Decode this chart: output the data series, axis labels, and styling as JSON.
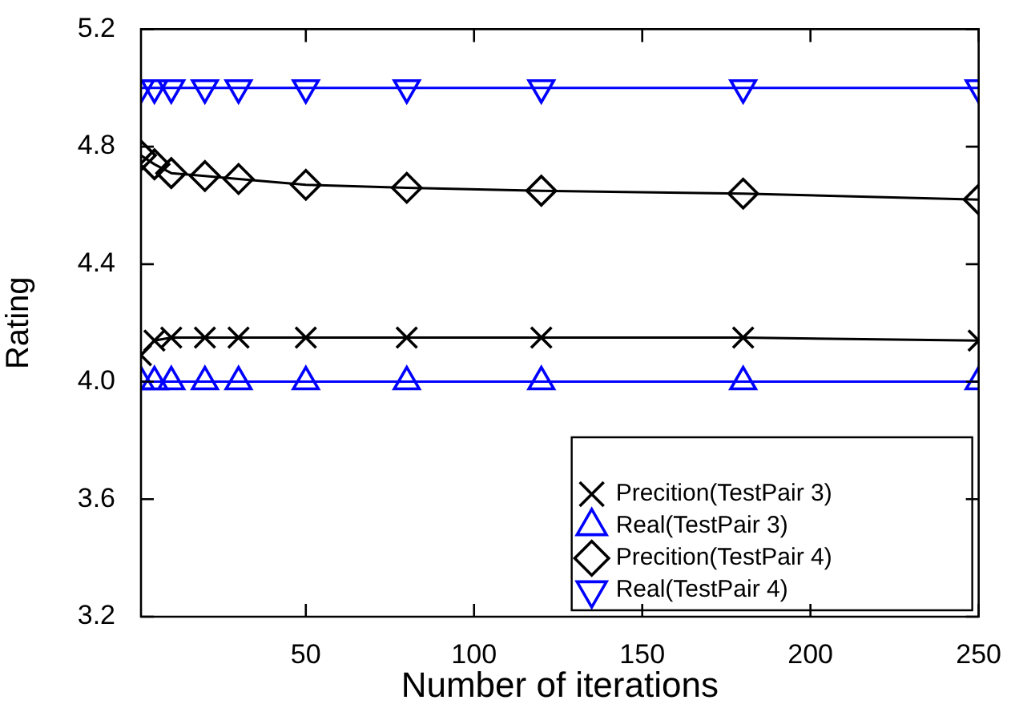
{
  "chart_data": {
    "type": "line",
    "xlabel": "Number of iterations",
    "ylabel": "Rating",
    "xlim": [
      1,
      250
    ],
    "xticks": [
      50,
      100,
      150,
      200,
      250
    ],
    "ylim": [
      3.2,
      5.2
    ],
    "yticks": [
      3.2,
      3.6,
      {
        "value": 4,
        "label": "4.0"
      },
      4.4,
      4.8,
      5.2
    ],
    "grid": false,
    "legend": "bottom right",
    "line_style": "solid",
    "series": [
      {
        "name": "Precition(TestPair 3)",
        "color": "#000000",
        "marker": "cross",
        "x": [
          1,
          5,
          10,
          20,
          30,
          50,
          80,
          120,
          180,
          250
        ],
        "values": [
          4.09,
          4.14,
          4.15,
          4.15,
          4.15,
          4.15,
          4.15,
          4.15,
          4.15,
          4.14
        ]
      },
      {
        "name": "Real(TestPair 3)",
        "color": "#0000ff",
        "marker": "triangle",
        "x": [
          1,
          5,
          10,
          20,
          30,
          50,
          80,
          120,
          180,
          250
        ],
        "values": [
          4.0,
          4.0,
          4.0,
          4.0,
          4.0,
          4.0,
          4.0,
          4.0,
          4.0,
          4.0
        ]
      },
      {
        "name": "Precition(TestPair 4)",
        "color": "#000000",
        "marker": "diamond",
        "x": [
          1,
          5,
          10,
          20,
          30,
          50,
          80,
          120,
          180,
          250
        ],
        "values": [
          4.77,
          4.74,
          4.71,
          4.7,
          4.69,
          4.67,
          4.66,
          4.65,
          4.64,
          4.62
        ]
      },
      {
        "name": "Real(TestPair 4)",
        "color": "#0000ff",
        "marker": "triangle_down",
        "x": [
          1,
          5,
          10,
          20,
          30,
          50,
          80,
          120,
          180,
          250
        ],
        "values": [
          5.0,
          5.0,
          5.0,
          5.0,
          5.0,
          5.0,
          5.0,
          5.0,
          5.0,
          5.0
        ]
      }
    ]
  }
}
